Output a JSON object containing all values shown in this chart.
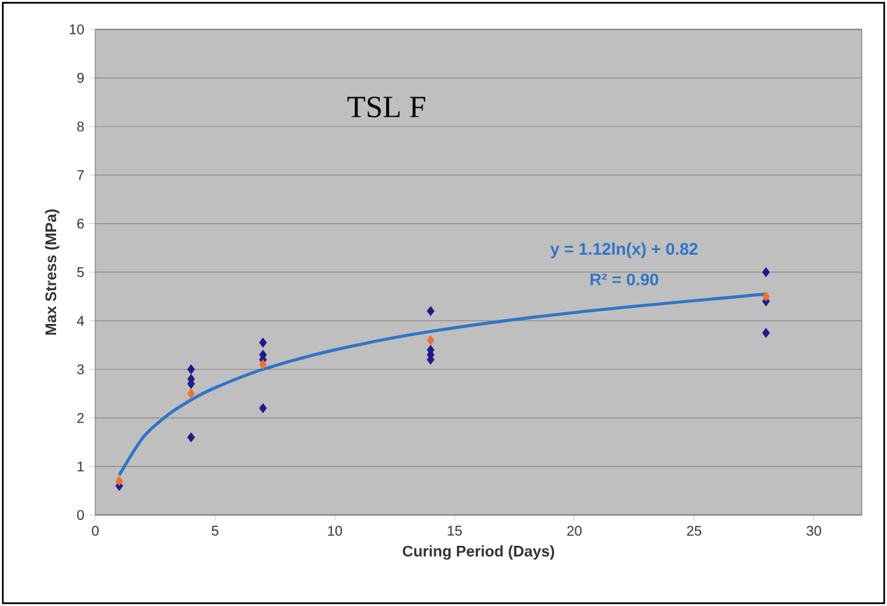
{
  "chart_data": {
    "type": "scatter",
    "title": "TSL F",
    "xlabel": "Curing Period (Days)",
    "ylabel": "Max Stress (MPa)",
    "series": [
      {
        "marker": "diamond",
        "color": "#1f1a8c",
        "x": [
          1,
          4,
          4,
          4,
          4,
          7,
          7,
          7,
          7,
          14,
          14,
          14,
          14,
          28,
          28,
          28
        ],
        "values": [
          0.6,
          3.0,
          2.8,
          2.7,
          1.6,
          3.55,
          3.3,
          3.2,
          2.2,
          4.2,
          3.4,
          3.3,
          3.2,
          5.0,
          4.4,
          3.75
        ]
      },
      {
        "marker": "diamond",
        "color": "#f07030",
        "x": [
          1,
          4,
          7,
          14,
          28
        ],
        "values": [
          0.7,
          2.5,
          3.1,
          3.6,
          4.5
        ]
      },
      {
        "type": "line",
        "marker": "none",
        "color": "#2e75c8",
        "x": [
          1,
          2,
          3,
          4,
          5,
          7,
          10,
          14,
          20,
          28
        ],
        "values": [
          0.82,
          1.6,
          2.05,
          2.37,
          2.62,
          3.0,
          3.4,
          3.78,
          4.17,
          4.55
        ]
      }
    ],
    "annotations": [
      "y = 1.12ln(x) + 0.82",
      "R² = 0.90"
    ],
    "xlim": [
      0,
      32
    ],
    "ylim": [
      0,
      10
    ],
    "xticks": [
      0,
      5,
      10,
      15,
      20,
      25,
      30
    ],
    "yticks": [
      0,
      1,
      2,
      3,
      4,
      5,
      6,
      7,
      8,
      9,
      10
    ],
    "grid": "y"
  }
}
